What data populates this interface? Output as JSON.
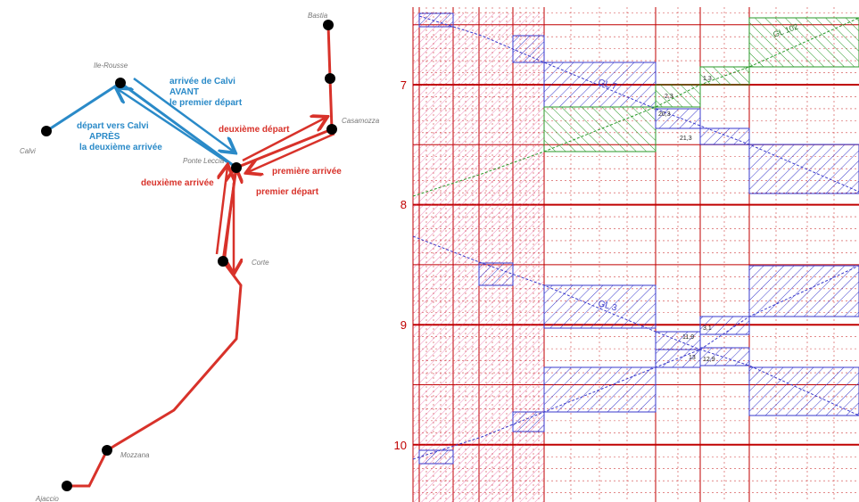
{
  "map": {
    "stations": [
      "Bastia",
      "Ile-Rousse",
      "Calvi",
      "Casamozza",
      "Ponte Leccia",
      "Corte",
      "Mozzana",
      "Ajaccio"
    ],
    "annotations": [
      {
        "lines": [
          "arrivée de Calvi",
          "AVANT",
          "le premier départ"
        ]
      },
      {
        "lines": [
          "départ vers  Calvi",
          "APRÈS",
          "la  deuxième arrivée"
        ]
      },
      {
        "lines": [
          "deuxième départ"
        ]
      },
      {
        "lines": [
          "première arrivée"
        ]
      },
      {
        "lines": [
          "premier départ"
        ]
      },
      {
        "lines": [
          "deuxième arrivée"
        ]
      }
    ]
  },
  "graph": {
    "hour_labels": [
      "7",
      "8",
      "9",
      "10"
    ],
    "train_labels": [
      "GL 7",
      "GL 3",
      "GL 102"
    ],
    "small_labels": [
      "2,3",
      "20,3",
      "21,3",
      "1,3",
      "11,9",
      "13",
      "12,9",
      "3,1"
    ]
  }
}
